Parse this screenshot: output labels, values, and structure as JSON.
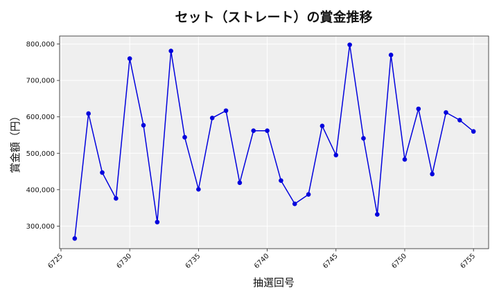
{
  "chart_data": {
    "type": "line",
    "title": "セット（ストレート）の賞金推移",
    "xlabel": "抽選回号",
    "ylabel": "賞金額（円）",
    "xlim": [
      6724.9,
      6756.1
    ],
    "ylim": [
      238000,
      822000
    ],
    "x_ticks": [
      6725,
      6730,
      6735,
      6740,
      6745,
      6750,
      6755
    ],
    "y_ticks": [
      300000,
      400000,
      500000,
      600000,
      700000,
      800000
    ],
    "y_tick_labels": [
      "300,000",
      "400,000",
      "500,000",
      "600,000",
      "700,000",
      "800,000"
    ],
    "grid": true,
    "series": [
      {
        "color": "#0000dd",
        "x": [
          6726,
          6727,
          6728,
          6729,
          6730,
          6731,
          6732,
          6733,
          6734,
          6735,
          6736,
          6737,
          6738,
          6739,
          6740,
          6741,
          6742,
          6743,
          6744,
          6745,
          6746,
          6747,
          6748,
          6749,
          6750,
          6751,
          6752,
          6753,
          6754,
          6755
        ],
        "values": [
          266000,
          609000,
          447000,
          376000,
          760000,
          577000,
          311000,
          781000,
          544000,
          401000,
          597000,
          617000,
          419000,
          562000,
          562000,
          425000,
          361000,
          387000,
          575000,
          495000,
          798000,
          541000,
          332000,
          770000,
          483000,
          622000,
          443000,
          612000,
          591000,
          560000
        ]
      }
    ]
  }
}
